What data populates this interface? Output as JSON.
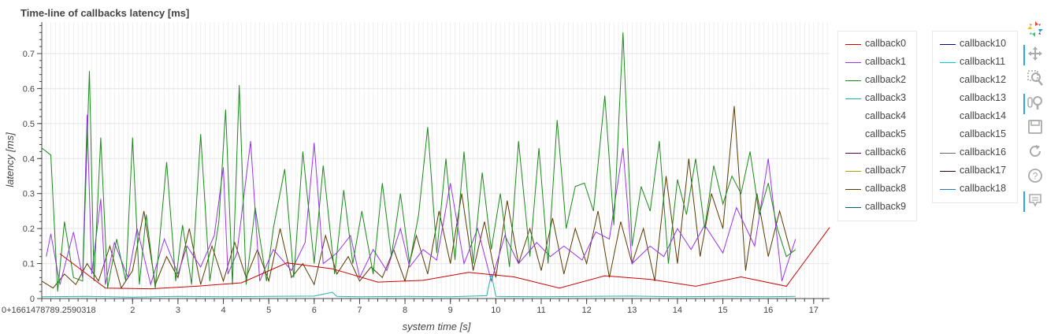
{
  "chart_data": {
    "type": "line",
    "title": "Time-line of callbacks latency [ms]",
    "xlabel": "system time [s]",
    "ylabel": "latency [ms]",
    "x_offset_label": "0+1661478789.2590318",
    "xlim": [
      0,
      17.35
    ],
    "ylim": [
      0,
      0.79
    ],
    "x_ticks": [
      2,
      3,
      4,
      5,
      6,
      7,
      8,
      9,
      10,
      11,
      12,
      13,
      14,
      15,
      16,
      17
    ],
    "y_ticks": [
      0,
      0.1,
      0.2,
      0.3,
      0.4,
      0.5,
      0.6,
      0.7
    ],
    "y_tick_labels": [
      "0",
      "0.1",
      "0.2",
      "0.3",
      "0.4",
      "0.5",
      "0.6",
      "0.7"
    ],
    "grid": true,
    "legend_placement": "right, two columns",
    "series": [
      {
        "name": "callback0",
        "color": "#cc0000",
        "x": [
          0.4,
          1.4,
          2.4,
          3.4,
          4.4,
          5.4,
          6.4,
          7.4,
          8.4,
          9.4,
          10.4,
          11.4,
          12.4,
          13.4,
          14.4,
          15.4,
          16.4,
          17.35
        ],
        "y": [
          0.128,
          0.03,
          0.028,
          0.035,
          0.045,
          0.102,
          0.085,
          0.047,
          0.052,
          0.075,
          0.062,
          0.03,
          0.065,
          0.055,
          0.035,
          0.062,
          0.035,
          0.203
        ]
      },
      {
        "name": "callback1",
        "color": "#9933ee",
        "x": [
          0.1,
          0.2,
          0.4,
          0.7,
          0.9,
          1.0,
          1.1,
          1.3,
          1.4,
          1.6,
          1.9,
          2.1,
          2.4,
          2.7,
          3.0,
          3.2,
          3.5,
          3.8,
          4.0,
          4.1,
          4.3,
          4.6,
          4.8,
          5.1,
          5.5,
          5.8,
          6.0,
          6.2,
          6.5,
          6.8,
          7.0,
          7.3,
          7.6,
          7.9,
          8.1,
          8.4,
          8.7,
          9.0,
          9.3,
          9.6,
          9.9,
          10.2,
          10.5,
          10.9,
          11.2,
          11.5,
          11.9,
          12.2,
          12.5,
          12.8,
          13.0,
          13.4,
          13.7,
          14.0,
          14.3,
          14.6,
          15.0,
          15.3,
          15.7,
          16.0,
          16.3,
          16.6
        ],
        "y": [
          0.12,
          0.185,
          0.04,
          0.19,
          0.06,
          0.525,
          0.07,
          0.285,
          0.04,
          0.16,
          0.06,
          0.2,
          0.04,
          0.17,
          0.07,
          0.15,
          0.09,
          0.18,
          0.375,
          0.07,
          0.13,
          0.45,
          0.05,
          0.14,
          0.08,
          0.16,
          0.445,
          0.1,
          0.13,
          0.18,
          0.06,
          0.14,
          0.08,
          0.2,
          0.09,
          0.14,
          0.11,
          0.33,
          0.1,
          0.2,
          0.05,
          0.18,
          0.1,
          0.16,
          0.12,
          0.15,
          0.11,
          0.19,
          0.17,
          0.43,
          0.1,
          0.15,
          0.12,
          0.2,
          0.14,
          0.21,
          0.13,
          0.26,
          0.15,
          0.4,
          0.05,
          0.17
        ]
      },
      {
        "name": "callback2",
        "color": "#1a8a1a",
        "x": [
          0,
          0.2,
          0.35,
          0.5,
          0.7,
          0.9,
          1.05,
          1.15,
          1.3,
          1.45,
          1.65,
          1.85,
          2.0,
          2.15,
          2.3,
          2.5,
          2.75,
          2.95,
          3.1,
          3.3,
          3.5,
          3.7,
          3.9,
          4.05,
          4.2,
          4.35,
          4.5,
          4.7,
          4.95,
          5.1,
          5.35,
          5.55,
          5.75,
          6.0,
          6.2,
          6.45,
          6.65,
          6.85,
          7.05,
          7.3,
          7.5,
          7.7,
          7.9,
          8.1,
          8.3,
          8.5,
          8.7,
          8.9,
          9.1,
          9.3,
          9.5,
          9.7,
          9.9,
          10.1,
          10.3,
          10.5,
          10.75,
          10.95,
          11.15,
          11.35,
          11.55,
          11.75,
          11.95,
          12.15,
          12.4,
          12.6,
          12.8,
          13.0,
          13.2,
          13.4,
          13.6,
          13.8,
          14.0,
          14.2,
          14.4,
          14.6,
          14.8,
          15.0,
          15.2,
          15.4,
          15.6,
          15.8,
          16.0,
          16.2,
          16.4,
          16.6
        ],
        "y": [
          0.43,
          0.41,
          0.02,
          0.22,
          0.06,
          0.05,
          0.65,
          0.05,
          0.46,
          0.03,
          0.17,
          0.05,
          0.46,
          0.04,
          0.24,
          0.03,
          0.39,
          0.05,
          0.21,
          0.04,
          0.47,
          0.05,
          0.22,
          0.54,
          0.04,
          0.61,
          0.04,
          0.26,
          0.05,
          0.2,
          0.37,
          0.06,
          0.42,
          0.1,
          0.38,
          0.07,
          0.31,
          0.1,
          0.25,
          0.07,
          0.33,
          0.12,
          0.3,
          0.1,
          0.24,
          0.49,
          0.13,
          0.4,
          0.11,
          0.42,
          0.1,
          0.36,
          0.14,
          0.3,
          0.09,
          0.45,
          0.12,
          0.43,
          0.1,
          0.51,
          0.2,
          0.32,
          0.33,
          0.25,
          0.58,
          0.21,
          0.76,
          0.15,
          0.32,
          0.25,
          0.45,
          0.1,
          0.34,
          0.24,
          0.4,
          0.2,
          0.38,
          0.27,
          0.35,
          0.3,
          0.42,
          0.24,
          0.33,
          0.2,
          0.12,
          0.14
        ]
      },
      {
        "name": "callback3",
        "color": "#20b2aa",
        "x": [
          0,
          1,
          2,
          3,
          4,
          5,
          6,
          6.4,
          6.5,
          7,
          8,
          9,
          9.8,
          9.9,
          10,
          11,
          12,
          13,
          14,
          15,
          16,
          16.6
        ],
        "y": [
          0.005,
          0.006,
          0.004,
          0.006,
          0.005,
          0.006,
          0.007,
          0.018,
          0.006,
          0.005,
          0.006,
          0.005,
          0.008,
          0.07,
          0.006,
          0.005,
          0.006,
          0.007,
          0.005,
          0.006,
          0.005,
          0.006
        ]
      },
      {
        "name": "callback4",
        "color": "#ffffff",
        "x": [],
        "y": []
      },
      {
        "name": "callback5",
        "color": "#ffffff",
        "x": [],
        "y": []
      },
      {
        "name": "callback6",
        "color": "#550055",
        "x": [],
        "y": []
      },
      {
        "name": "callback7",
        "color": "#b8a000",
        "x": [],
        "y": []
      },
      {
        "name": "callback8",
        "color": "#5a3a00",
        "x": [
          0,
          0.25,
          0.5,
          0.75,
          1.0,
          1.25,
          1.5,
          1.75,
          2.0,
          2.25,
          2.5,
          2.75,
          3.0,
          3.25,
          3.5,
          3.75,
          4.0,
          4.25,
          4.5,
          4.75,
          5.0,
          5.25,
          5.5,
          5.75,
          6.0,
          6.25,
          6.5,
          6.75,
          7.0,
          7.25,
          7.5,
          7.75,
          8.0,
          8.25,
          8.5,
          8.75,
          9.0,
          9.25,
          9.5,
          9.75,
          10.0,
          10.25,
          10.5,
          10.75,
          11.0,
          11.25,
          11.5,
          11.75,
          12.0,
          12.25,
          12.5,
          12.75,
          13.0,
          13.25,
          13.5,
          13.75,
          14.0,
          14.25,
          14.5,
          14.75,
          15.0,
          15.25,
          15.5,
          15.75,
          16.0,
          16.25,
          16.5
        ],
        "y": [
          0.05,
          0.03,
          0.07,
          0.04,
          0.1,
          0.05,
          0.15,
          0.03,
          0.08,
          0.25,
          0.04,
          0.12,
          0.06,
          0.2,
          0.04,
          0.15,
          0.05,
          0.16,
          0.06,
          0.14,
          0.05,
          0.2,
          0.06,
          0.1,
          0.04,
          0.18,
          0.07,
          0.12,
          0.05,
          0.09,
          0.06,
          0.14,
          0.05,
          0.18,
          0.07,
          0.25,
          0.1,
          0.3,
          0.08,
          0.22,
          0.06,
          0.28,
          0.1,
          0.2,
          0.08,
          0.23,
          0.07,
          0.2,
          0.1,
          0.25,
          0.06,
          0.22,
          0.1,
          0.2,
          0.05,
          0.35,
          0.1,
          0.4,
          0.12,
          0.3,
          0.2,
          0.55,
          0.08,
          0.3,
          0.12,
          0.25,
          0.13
        ]
      },
      {
        "name": "callback9",
        "color": "#005f6b",
        "x": [],
        "y": []
      },
      {
        "name": "callback10",
        "color": "#00008b",
        "x": [],
        "y": []
      },
      {
        "name": "callback11",
        "color": "#00ced1",
        "x": [],
        "y": []
      },
      {
        "name": "callback12",
        "color": "#ffffff",
        "x": [],
        "y": []
      },
      {
        "name": "callback13",
        "color": "#ffffff",
        "x": [],
        "y": []
      },
      {
        "name": "callback14",
        "color": "#ffffff",
        "x": [],
        "y": []
      },
      {
        "name": "callback15",
        "color": "#ffffff",
        "x": [],
        "y": []
      },
      {
        "name": "callback16",
        "color": "#666666",
        "x": [],
        "y": []
      },
      {
        "name": "callback17",
        "color": "#330000",
        "x": [],
        "y": []
      },
      {
        "name": "callback18",
        "color": "#1e78c8",
        "x": [],
        "y": []
      }
    ]
  },
  "legend": {
    "column1": [
      {
        "label": "callback0",
        "color": "#cc0000"
      },
      {
        "label": "callback1",
        "color": "#9933ee"
      },
      {
        "label": "callback2",
        "color": "#1a8a1a"
      },
      {
        "label": "callback3",
        "color": "#20b2aa"
      },
      {
        "label": "callback4",
        "color": "#ffffff"
      },
      {
        "label": "callback5",
        "color": "#ffffff"
      },
      {
        "label": "callback6",
        "color": "#550055"
      },
      {
        "label": "callback7",
        "color": "#b8a000"
      },
      {
        "label": "callback8",
        "color": "#5a3a00"
      },
      {
        "label": "callback9",
        "color": "#005f6b"
      }
    ],
    "column2": [
      {
        "label": "callback10",
        "color": "#00008b"
      },
      {
        "label": "callback11",
        "color": "#00ced1"
      },
      {
        "label": "callback12",
        "color": "#ffffff"
      },
      {
        "label": "callback13",
        "color": "#ffffff"
      },
      {
        "label": "callback14",
        "color": "#ffffff"
      },
      {
        "label": "callback15",
        "color": "#ffffff"
      },
      {
        "label": "callback16",
        "color": "#666666"
      },
      {
        "label": "callback17",
        "color": "#330000"
      },
      {
        "label": "callback18",
        "color": "#1e78c8"
      }
    ]
  },
  "toolbar": {
    "tools": [
      {
        "icon": "bokeh-logo-icon",
        "active": false
      },
      {
        "icon": "pan-icon",
        "active": true
      },
      {
        "icon": "box-zoom-icon",
        "active": false
      },
      {
        "icon": "wheel-zoom-icon",
        "active": true
      },
      {
        "icon": "save-icon",
        "active": false
      },
      {
        "icon": "reset-icon",
        "active": false
      },
      {
        "icon": "help-icon",
        "active": false
      },
      {
        "icon": "hover-icon",
        "active": true
      }
    ]
  }
}
